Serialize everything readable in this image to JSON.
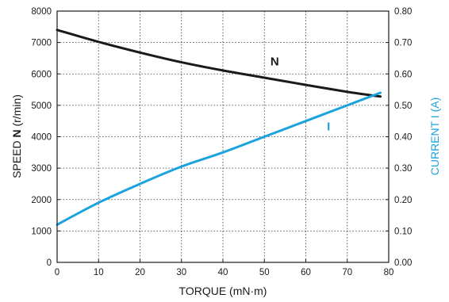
{
  "chart_data": {
    "type": "line",
    "x_axis": {
      "label": "TORQUE (mN·m)",
      "min": 0,
      "max": 80,
      "ticks": [
        0,
        10,
        20,
        30,
        40,
        50,
        60,
        70,
        80
      ],
      "tick_labels": [
        "0",
        "10",
        "20",
        "30",
        "40",
        "50",
        "60",
        "70",
        "80"
      ]
    },
    "y_axis_left": {
      "label_prefix": "SPEED ",
      "label_bold": "N",
      "label_suffix": " (r/min)",
      "min": 0,
      "max": 8000,
      "ticks": [
        0,
        1000,
        2000,
        3000,
        4000,
        5000,
        6000,
        7000,
        8000
      ],
      "tick_labels": [
        "0",
        "1000",
        "2000",
        "3000",
        "4000",
        "5000",
        "6000",
        "7000",
        "8000"
      ]
    },
    "y_axis_right": {
      "label": "CURRENT I (A)",
      "min": 0,
      "max": 0.8,
      "ticks": [
        0,
        0.1,
        0.2,
        0.3,
        0.4,
        0.5,
        0.6,
        0.7,
        0.8
      ],
      "tick_labels": [
        "0.00",
        "0.10",
        "0.20",
        "0.30",
        "0.40",
        "0.50",
        "0.60",
        "0.70",
        "0.80"
      ]
    },
    "grid": true,
    "series": [
      {
        "name": "N",
        "axis": "left",
        "color": "#1a1a1a",
        "x": [
          0,
          10,
          20,
          30,
          40,
          50,
          60,
          70,
          78
        ],
        "y": [
          7400,
          7020,
          6680,
          6370,
          6110,
          5880,
          5650,
          5430,
          5280
        ],
        "label_at": {
          "x": 52.5,
          "y": 6270
        }
      },
      {
        "name": "I",
        "axis": "right",
        "color": "#1aa3de",
        "x": [
          0,
          10,
          20,
          30,
          40,
          50,
          60,
          70,
          78
        ],
        "y": [
          0.12,
          0.19,
          0.25,
          0.305,
          0.35,
          0.4,
          0.45,
          0.5,
          0.54
        ],
        "label_at": {
          "x": 65.5,
          "y": 0.42
        }
      }
    ]
  }
}
